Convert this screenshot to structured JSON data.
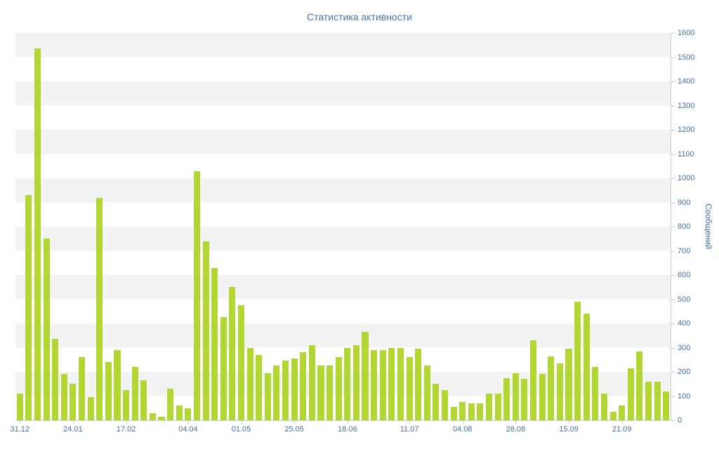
{
  "chart_data": {
    "type": "bar",
    "title": "Статистика активности",
    "xlabel": "",
    "ylabel": "Сообщений",
    "ylim": [
      0,
      1600
    ],
    "y_tick_step": 100,
    "y_ticks": [
      0,
      100,
      200,
      300,
      400,
      500,
      600,
      700,
      800,
      900,
      1000,
      1100,
      1200,
      1300,
      1400,
      1500,
      1600
    ],
    "legend": "off",
    "grid": "alternating-horizontal-bands",
    "bar_color": "#b2d733",
    "band_color": "#f3f3f3",
    "axis_text_color": "#4572a7",
    "title_color": "#4572a7",
    "values": [
      110,
      930,
      1535,
      750,
      335,
      190,
      150,
      260,
      95,
      920,
      240,
      290,
      125,
      220,
      165,
      30,
      15,
      130,
      60,
      50,
      1030,
      740,
      630,
      425,
      550,
      475,
      300,
      270,
      195,
      225,
      245,
      255,
      280,
      310,
      225,
      225,
      260,
      300,
      310,
      365,
      290,
      290,
      300,
      300,
      260,
      295,
      225,
      150,
      125,
      55,
      75,
      70,
      70,
      110,
      110,
      175,
      195,
      170,
      330,
      190,
      265,
      235,
      295,
      490,
      440,
      220,
      110,
      35,
      60,
      215,
      285,
      160,
      160,
      120
    ],
    "x_tick_labels": [
      {
        "index": 0,
        "label": "31.12"
      },
      {
        "index": 6,
        "label": "24.01"
      },
      {
        "index": 12,
        "label": "17.02"
      },
      {
        "index": 19,
        "label": "04.04"
      },
      {
        "index": 25,
        "label": "01.05"
      },
      {
        "index": 31,
        "label": "25.05"
      },
      {
        "index": 37,
        "label": "18.06"
      },
      {
        "index": 44,
        "label": "11.07"
      },
      {
        "index": 50,
        "label": "04.08"
      },
      {
        "index": 56,
        "label": "28.08"
      },
      {
        "index": 62,
        "label": "15.09"
      },
      {
        "index": 68,
        "label": "21.09"
      }
    ]
  }
}
